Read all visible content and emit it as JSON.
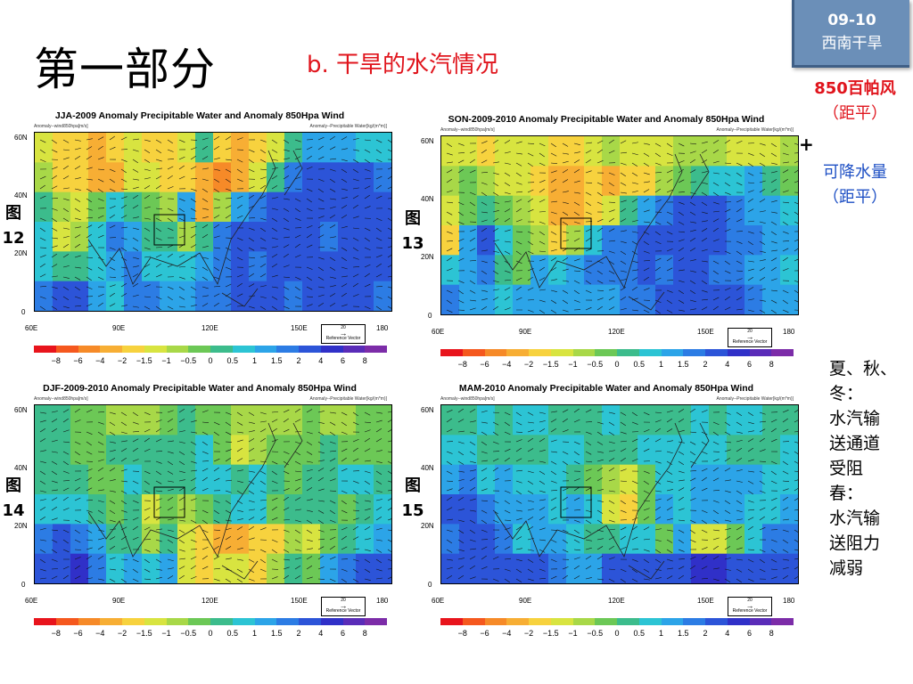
{
  "slide": {
    "title": "第一部分",
    "subtitle": "b. 干旱的水汽情况",
    "badge": {
      "line1": "09-10",
      "line2": "西南干旱"
    },
    "legend_red": {
      "line1": "850百帕风",
      "line2": "（距平）"
    },
    "plus": "+",
    "legend_blue": {
      "line1": "可降水量",
      "line2": "（距平）"
    },
    "notes": [
      "夏、秋、",
      "冬：",
      "水汽输",
      "送通道",
      "受阻",
      "春：",
      "水汽输",
      "送阻力",
      "减弱"
    ]
  },
  "figure_labels": [
    {
      "line1": "图",
      "line2": "12"
    },
    {
      "line1": "图",
      "line2": "13"
    },
    {
      "line1": "图",
      "line2": "14"
    },
    {
      "line1": "图",
      "line2": "15"
    }
  ],
  "panels": [
    {
      "title": "JJA-2009 Anomaly Precipitable Water and Anomaly 850Hpa Wind",
      "sub_left": "Anomaly--wind850hpa[m/s]",
      "sub_right": "Anomaly--Precipitable Water[kg/(m*m)]"
    },
    {
      "title": "SON-2009-2010 Anomaly Precipitable Water and Anomaly 850Hpa Wind",
      "sub_left": "Anomaly--wind850hpa[m/s]",
      "sub_right": "Anomaly--Precipitable Water[kg/(m*m)]"
    },
    {
      "title": "DJF-2009-2010 Anomaly Precipitable Water and Anomaly 850Hpa Wind",
      "sub_left": "Anomaly--wind850hpa[m/s]",
      "sub_right": "Anomaly--Precipitable Water[kg/(m*m)]"
    },
    {
      "title": "MAM-2010 Anomaly Precipitable Water and Anomaly 850Hpa Wind",
      "sub_left": "Anomaly--wind850hpa[m/s]",
      "sub_right": "Anomaly--Precipitable Water[kg/(m*m)]"
    }
  ],
  "axes": {
    "yticks": [
      "60N",
      "40N",
      "20N",
      "0"
    ],
    "xticks": [
      "60E",
      "90E",
      "120E",
      "150E",
      "180"
    ],
    "ref_vector": {
      "value": "20",
      "label": "Reference Vector"
    }
  },
  "colorbar": {
    "colors": [
      "#e8141c",
      "#f5581e",
      "#f68a28",
      "#f7ae34",
      "#f7d23e",
      "#d8e440",
      "#a8d848",
      "#6cc856",
      "#3cbc8c",
      "#2cc4d4",
      "#2ca4e8",
      "#2c7ce4",
      "#2c54d8",
      "#3030c8",
      "#5a2cb8",
      "#7c2ca8"
    ],
    "labels": [
      "−8",
      "−6",
      "−4",
      "−2",
      "−1.5",
      "−1",
      "−0.5",
      "0",
      "0.5",
      "1",
      "1.5",
      "2",
      "4",
      "6",
      "8"
    ]
  },
  "fields": [
    [
      [
        5,
        4,
        4,
        3,
        4,
        5,
        4,
        4,
        5,
        8,
        4,
        3,
        4,
        5,
        8,
        10,
        10,
        10,
        9,
        9
      ],
      [
        6,
        4,
        4,
        3,
        3,
        5,
        5,
        4,
        4,
        3,
        2,
        3,
        5,
        8,
        11,
        12,
        12,
        12,
        12,
        11
      ],
      [
        8,
        6,
        5,
        7,
        9,
        8,
        7,
        6,
        10,
        3,
        6,
        10,
        11,
        12,
        12,
        12,
        12,
        12,
        12,
        12
      ],
      [
        9,
        5,
        6,
        9,
        11,
        10,
        8,
        8,
        6,
        8,
        11,
        12,
        12,
        12,
        12,
        12,
        11,
        12,
        12,
        12
      ],
      [
        9,
        8,
        8,
        9,
        10,
        11,
        9,
        9,
        9,
        10,
        11,
        12,
        11,
        12,
        12,
        12,
        12,
        12,
        12,
        12
      ],
      [
        11,
        12,
        12,
        10,
        9,
        11,
        11,
        10,
        10,
        11,
        11,
        12,
        12,
        12,
        11,
        12,
        12,
        12,
        12,
        11
      ]
    ],
    [
      [
        5,
        5,
        4,
        5,
        5,
        5,
        4,
        4,
        5,
        6,
        5,
        5,
        5,
        6,
        6,
        6,
        5,
        5,
        5,
        6
      ],
      [
        6,
        7,
        6,
        5,
        5,
        4,
        3,
        3,
        4,
        3,
        4,
        4,
        6,
        7,
        8,
        9,
        9,
        10,
        8,
        7
      ],
      [
        5,
        7,
        8,
        7,
        6,
        5,
        3,
        3,
        4,
        5,
        8,
        10,
        11,
        12,
        12,
        12,
        11,
        10,
        10,
        9
      ],
      [
        4,
        10,
        12,
        9,
        7,
        6,
        4,
        6,
        9,
        11,
        11,
        12,
        12,
        12,
        12,
        12,
        11,
        11,
        10,
        10
      ],
      [
        9,
        10,
        11,
        8,
        7,
        10,
        9,
        10,
        11,
        11,
        11,
        12,
        11,
        12,
        12,
        11,
        11,
        10,
        10,
        9
      ],
      [
        11,
        10,
        10,
        9,
        10,
        10,
        10,
        10,
        10,
        10,
        11,
        11,
        12,
        12,
        12,
        12,
        12,
        11,
        10,
        10
      ]
    ],
    [
      [
        8,
        8,
        7,
        7,
        6,
        6,
        6,
        7,
        8,
        7,
        7,
        6,
        6,
        6,
        6,
        7,
        6,
        6,
        7,
        7
      ],
      [
        8,
        8,
        7,
        7,
        8,
        8,
        8,
        8,
        8,
        9,
        7,
        5,
        6,
        7,
        7,
        7,
        8,
        7,
        7,
        7
      ],
      [
        8,
        8,
        8,
        7,
        7,
        9,
        8,
        8,
        8,
        9,
        9,
        8,
        9,
        8,
        7,
        8,
        8,
        9,
        9,
        8
      ],
      [
        9,
        9,
        9,
        8,
        7,
        8,
        5,
        7,
        6,
        7,
        8,
        9,
        9,
        7,
        8,
        8,
        8,
        7,
        8,
        9
      ],
      [
        11,
        12,
        11,
        10,
        8,
        8,
        6,
        8,
        5,
        4,
        3,
        3,
        4,
        4,
        6,
        5,
        7,
        8,
        9,
        10
      ],
      [
        12,
        12,
        13,
        11,
        9,
        10,
        9,
        10,
        5,
        4,
        5,
        5,
        4,
        6,
        8,
        7,
        10,
        11,
        12,
        12
      ]
    ],
    [
      [
        8,
        8,
        9,
        8,
        9,
        9,
        8,
        8,
        8,
        9,
        8,
        8,
        8,
        8,
        9,
        8,
        9,
        9,
        8,
        8
      ],
      [
        9,
        9,
        8,
        8,
        8,
        8,
        9,
        9,
        8,
        8,
        8,
        9,
        9,
        9,
        9,
        9,
        8,
        8,
        8,
        9
      ],
      [
        10,
        11,
        9,
        10,
        9,
        9,
        9,
        8,
        7,
        6,
        5,
        7,
        9,
        9,
        10,
        10,
        10,
        10,
        9,
        9
      ],
      [
        12,
        12,
        11,
        10,
        10,
        10,
        9,
        10,
        9,
        5,
        4,
        7,
        10,
        9,
        10,
        10,
        10,
        9,
        9,
        10
      ],
      [
        11,
        12,
        12,
        11,
        9,
        10,
        10,
        9,
        8,
        8,
        9,
        9,
        7,
        10,
        5,
        5,
        7,
        9,
        11,
        11
      ],
      [
        12,
        12,
        12,
        12,
        12,
        12,
        11,
        10,
        10,
        12,
        12,
        12,
        12,
        12,
        13,
        13,
        12,
        12,
        12,
        12
      ]
    ]
  ]
}
